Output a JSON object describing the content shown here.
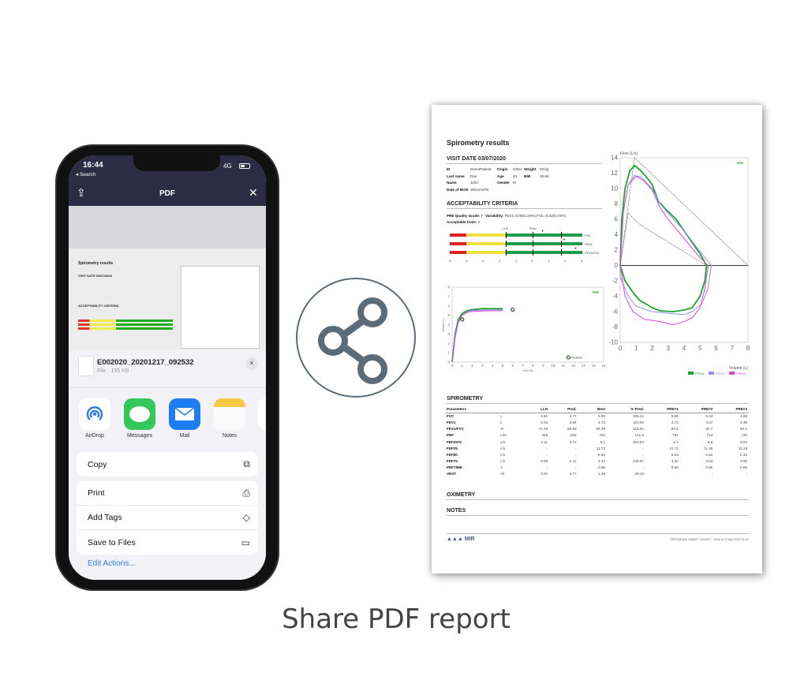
{
  "phone": {
    "status": {
      "time": "16:44",
      "back": "◂ Search",
      "network": "4G"
    },
    "nav": {
      "title": "PDF",
      "share_icon": "share-icon",
      "close_icon": "close-icon"
    },
    "thumbnail": {
      "title": "Spirometry results",
      "visit": "VISIT DATE 03/07/2020",
      "criteria": "ACCEPTABILITY CRITERIA"
    },
    "sheet": {
      "file_name": "E002020_20201217_092532",
      "file_meta": "File · 155 KB",
      "apps": [
        {
          "label": "AirDrop",
          "color": "#2f7de1"
        },
        {
          "label": "Messages",
          "color": "#34c759"
        },
        {
          "label": "Mail",
          "color": "#1e7cf2"
        },
        {
          "label": "Notes",
          "color": "#f7c843"
        }
      ],
      "actions_group1": [
        {
          "label": "Copy",
          "icon": "copy-icon"
        }
      ],
      "actions_group2": [
        {
          "label": "Print",
          "icon": "printer-icon"
        },
        {
          "label": "Add Tags",
          "icon": "tag-icon"
        },
        {
          "label": "Save to Files",
          "icon": "folder-icon"
        }
      ],
      "edit_actions": "Edit Actions..."
    }
  },
  "share_icon": "share-nodes-icon",
  "report": {
    "title": "Spirometry results",
    "visit_date": "VISIT DATE 03/07/2020",
    "patient": {
      "id_label": "ID",
      "id": "DemoPatient",
      "origin_label": "Origin",
      "origin": "Other",
      "weight_label": "Weight",
      "weight": "63 kg",
      "last_name_label": "Last name",
      "last_name": "Doe",
      "age_label": "Age",
      "age": "43",
      "bmi_label": "BMI",
      "bmi": "19.88",
      "name_label": "Name",
      "name": "John",
      "gender_label": "Gender",
      "gender": "M",
      "dob_label": "Date of Birth",
      "dob": "29/10/1976"
    },
    "acceptability": {
      "heading": "ACCEPTABILITY CRITERIA",
      "grade_label": "PRE Quality Grade:",
      "grade": "F",
      "variability_label": "Variability:",
      "variability": "FEV1=0.06(1.28%),FVC=0.02(0.04%)",
      "trials_label": "Acceptable trials:",
      "trials": "2",
      "lln_label": "LLN",
      "pred_label": "Pred.",
      "scale": [
        "-5",
        "-4",
        "-3",
        "-2",
        "-1",
        "0",
        "1",
        "2",
        "3"
      ],
      "bars": [
        {
          "label": "FVC",
          "marker": 0.6
        },
        {
          "label": "FEV1",
          "marker": 1.9
        },
        {
          "label": "FEV1/FVC",
          "marker": 2.6
        }
      ]
    },
    "spirometry": {
      "heading": "SPIROMETRY",
      "columns": [
        "Parameters",
        "",
        "LLN",
        "Pred.",
        "Best",
        "% Pred.",
        "PRE#1",
        "PRE#2",
        "PRE#3"
      ],
      "rows": [
        [
          "FVC",
          "L",
          "3.82",
          "4.77",
          "5.06",
          "106.12",
          "5.06",
          "5.04",
          "4.66"
        ],
        [
          "FEV1",
          "L",
          "3.03",
          "3.84",
          "4.73",
          "123.02",
          "4.73",
          "4.67",
          "4.39"
        ],
        [
          "FEV1/FVC",
          "%",
          "71.25",
          "80.93",
          "93.48",
          "115.51",
          "93.5",
          "92.7",
          "94.2"
        ],
        [
          "PEF",
          "L/m",
          "348",
          "553",
          "784",
          "141.8",
          "784",
          "712",
          "732"
        ],
        [
          "FEF2575",
          "L/s",
          "2.11",
          "3.72",
          "6.1",
          "163.83",
          "6.1",
          "6.5",
          "5.84"
        ],
        [
          "FEF25",
          "L/s",
          "-",
          "-",
          "11.72",
          "-",
          "11.72",
          "11.45",
          "11.28"
        ],
        [
          "FEF50",
          "L/s",
          "-",
          "-",
          "6.53",
          "-",
          "6.53",
          "6.82",
          "6.12"
        ],
        [
          "FEF75",
          "L/s",
          "0.69",
          "1.41",
          "3.34",
          "236.87",
          "3.34",
          "3.54",
          "3.05"
        ],
        [
          "PEFTIME",
          "s",
          "-",
          "-",
          "0.55",
          "-",
          "0.55",
          "0.96",
          "0.58"
        ],
        [
          "VEXT",
          "ml",
          "3.82",
          "4.77",
          "1.39",
          "29.15",
          "-",
          "-",
          "-"
        ]
      ]
    },
    "oximetry": "OXIMETRY",
    "notes": "NOTES",
    "footer": {
      "logo": "MIR",
      "device": "SPIROBANK SMART Z001047 · Sent on 3 July 2020 01:24"
    }
  },
  "chart_data": [
    {
      "type": "line",
      "title": "",
      "xlabel": "Volume (L)",
      "ylabel": "Flow (L/s)",
      "xlim": [
        0,
        8
      ],
      "ylim": [
        -10,
        14
      ],
      "xticks": [
        0,
        1,
        2,
        3,
        4,
        5,
        6,
        7,
        8
      ],
      "yticks": [
        14,
        12,
        10,
        8,
        6,
        4,
        2,
        0,
        -2,
        -4,
        -6,
        -8,
        -10
      ],
      "tag": "PRE",
      "legend": "bottom-right",
      "series": [
        {
          "name": "PRE#1",
          "color": "#1aa52a",
          "points": [
            [
              0,
              0
            ],
            [
              0.1,
              6
            ],
            [
              0.3,
              10
            ],
            [
              0.6,
              12.3
            ],
            [
              0.9,
              13
            ],
            [
              1.2,
              12.5
            ],
            [
              1.6,
              11.6
            ],
            [
              2,
              10.5
            ],
            [
              2.4,
              8.3
            ],
            [
              3,
              7
            ],
            [
              3.5,
              6
            ],
            [
              4,
              4.5
            ],
            [
              4.5,
              3
            ],
            [
              5,
              1.5
            ],
            [
              5.4,
              0
            ],
            [
              5.3,
              -2
            ],
            [
              5,
              -4
            ],
            [
              4.5,
              -5.5
            ],
            [
              4,
              -5.8
            ],
            [
              3.3,
              -6
            ],
            [
              2.5,
              -5.9
            ],
            [
              2,
              -5.5
            ],
            [
              1.2,
              -4.5
            ],
            [
              0.8,
              -3.5
            ],
            [
              0.3,
              -2
            ],
            [
              0,
              0
            ]
          ]
        },
        {
          "name": "PRE#2",
          "color": "#8f8ff0",
          "points": [
            [
              0,
              0
            ],
            [
              0.2,
              7
            ],
            [
              0.5,
              10.5
            ],
            [
              0.9,
              11.7
            ],
            [
              1.3,
              11.5
            ],
            [
              2,
              10
            ],
            [
              2.5,
              8
            ],
            [
              3,
              6.8
            ],
            [
              4,
              4.5
            ],
            [
              5,
              1.8
            ],
            [
              5.7,
              0
            ],
            [
              5.5,
              -3
            ],
            [
              5.1,
              -5
            ],
            [
              4.5,
              -6
            ],
            [
              4,
              -6.4
            ],
            [
              3,
              -6.2
            ],
            [
              2,
              -6
            ],
            [
              1,
              -5.3
            ],
            [
              0.5,
              -4
            ],
            [
              0,
              -1.5
            ],
            [
              0,
              0
            ]
          ]
        },
        {
          "name": "PRE#3",
          "color": "#e040e0",
          "points": [
            [
              0,
              0
            ],
            [
              0.2,
              7
            ],
            [
              0.5,
              10.5
            ],
            [
              1,
              11.6
            ],
            [
              1.5,
              11
            ],
            [
              2,
              9.8
            ],
            [
              2.5,
              7.5
            ],
            [
              3,
              6
            ],
            [
              4,
              3.5
            ],
            [
              5,
              1
            ],
            [
              5.5,
              0
            ],
            [
              5.3,
              -3
            ],
            [
              5,
              -5.5
            ],
            [
              4.5,
              -6.8
            ],
            [
              4,
              -7.3
            ],
            [
              3.3,
              -7.7
            ],
            [
              2.5,
              -7.3
            ],
            [
              1.5,
              -7
            ],
            [
              0.8,
              -6
            ],
            [
              0.3,
              -4
            ],
            [
              0,
              0
            ]
          ]
        }
      ],
      "predicted": [
        [
          [
            0,
            0
          ],
          [
            0.9,
            14
          ],
          [
            8,
            0
          ]
        ],
        [
          [
            0,
            0
          ],
          [
            0.5,
            6.8
          ],
          [
            1.3,
            5.2
          ],
          [
            5.4,
            0
          ]
        ]
      ]
    },
    {
      "type": "line",
      "title": "",
      "xlabel": "Time (s)",
      "ylabel": "Volume (L)",
      "xlim": [
        0,
        15
      ],
      "ylim": [
        0,
        8
      ],
      "xticks": [
        0,
        1,
        2,
        3,
        4,
        5,
        6,
        7,
        8,
        9,
        10,
        11,
        12,
        13,
        14,
        15
      ],
      "yticks": [
        0,
        1,
        2,
        3,
        4,
        5,
        6,
        7,
        8
      ],
      "tag": "PRE",
      "series": [
        {
          "name": "PRE#1",
          "color": "#1aa52a",
          "points": [
            [
              0,
              0
            ],
            [
              0.3,
              3
            ],
            [
              0.6,
              4.5
            ],
            [
              1,
              5.2
            ],
            [
              1.5,
              5.5
            ],
            [
              2,
              5.6
            ],
            [
              3,
              5.7
            ],
            [
              5,
              5.7
            ]
          ]
        },
        {
          "name": "PRE#2",
          "color": "#8f8ff0",
          "points": [
            [
              0,
              0
            ],
            [
              0.3,
              2.6
            ],
            [
              0.6,
              4.2
            ],
            [
              1,
              5
            ],
            [
              1.5,
              5.4
            ],
            [
              2,
              5.5
            ],
            [
              3,
              5.55
            ],
            [
              5,
              5.6
            ]
          ]
        },
        {
          "name": "PRE#3",
          "color": "#e040e0",
          "points": [
            [
              0,
              0
            ],
            [
              0.3,
              2.8
            ],
            [
              0.6,
              4.3
            ],
            [
              1,
              5
            ],
            [
              1.5,
              5.3
            ],
            [
              2,
              5.4
            ],
            [
              3,
              5.45
            ],
            [
              5,
              5.5
            ]
          ]
        }
      ],
      "markers": [
        [
          1,
          4.55
        ],
        [
          6,
          5.6
        ]
      ],
      "predicted_marker": {
        "x": 11.5,
        "y": 0.5,
        "label": "Predicted"
      }
    }
  ]
}
